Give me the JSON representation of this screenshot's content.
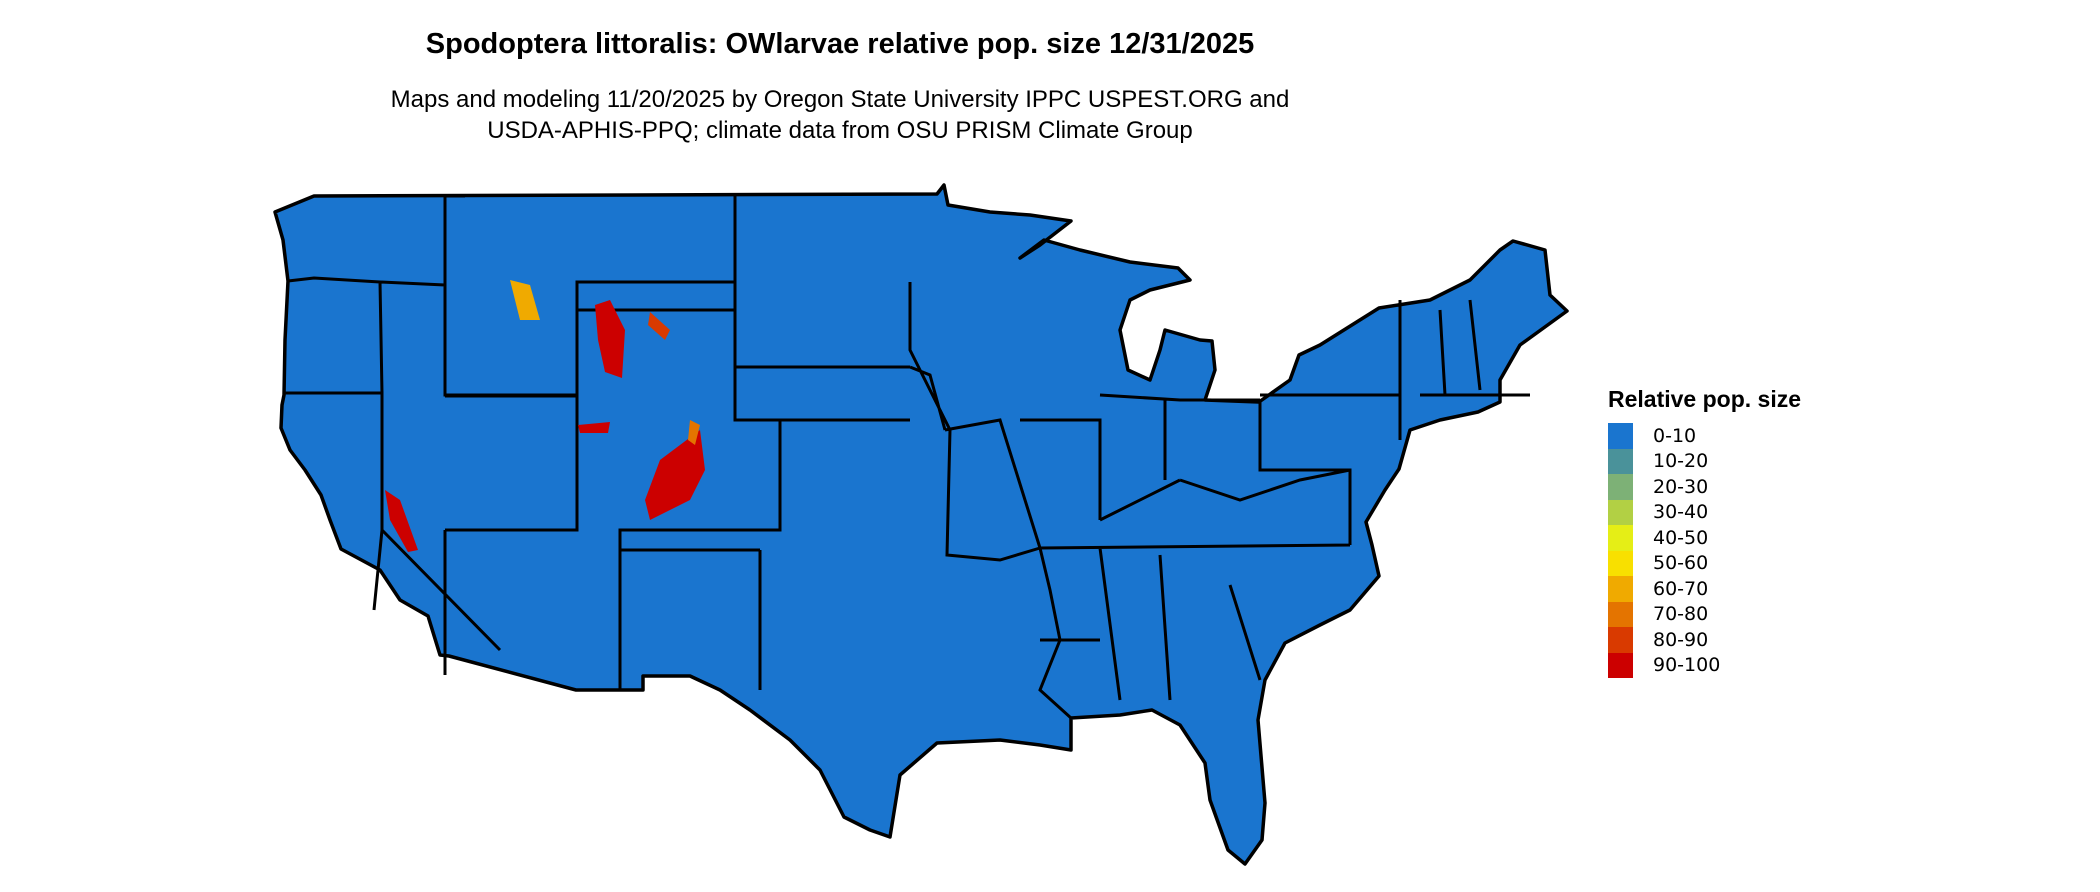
{
  "title": "Spodoptera littoralis: OWlarvae relative pop. size 12/31/2025",
  "subtitle_line1": "Maps and modeling 11/20/2025 by Oregon State University IPPC USPEST.ORG and",
  "subtitle_line2": "USDA-APHIS-PPQ; climate data from OSU PRISM Climate Group",
  "map": {
    "region": "Conterminous United States",
    "base_color": "#1a75cf",
    "border_color": "#000000",
    "hotspot_color": "#cc0000"
  },
  "legend": {
    "title": "Relative pop. size",
    "items": [
      {
        "label": "0-10",
        "color": "#1a75cf"
      },
      {
        "label": "10-20",
        "color": "#4a929a"
      },
      {
        "label": "20-30",
        "color": "#7db176"
      },
      {
        "label": "30-40",
        "color": "#b2d044"
      },
      {
        "label": "40-50",
        "color": "#e5ee16"
      },
      {
        "label": "50-60",
        "color": "#f8e000"
      },
      {
        "label": "60-70",
        "color": "#f0aa00"
      },
      {
        "label": "70-80",
        "color": "#e47400"
      },
      {
        "label": "80-90",
        "color": "#d93a00"
      },
      {
        "label": "90-100",
        "color": "#cc0000"
      }
    ]
  }
}
